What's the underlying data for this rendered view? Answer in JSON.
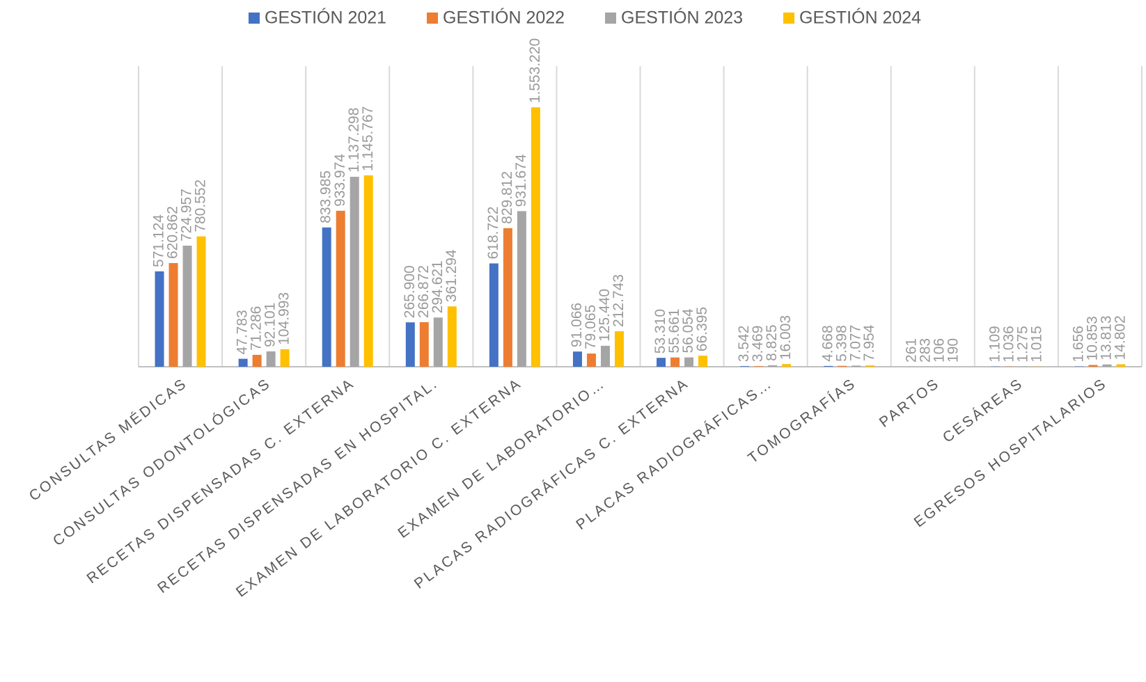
{
  "chart_data": {
    "type": "bar",
    "categories": [
      "CONSULTAS MÉDICAS",
      "CONSULTAS ODONTOLÓGICAS",
      "RECETAS DISPENSADAS C. EXTERNA",
      "RECETAS DISPENSADAS EN HOSPITAL.",
      "EXAMEN DE LABORATORIO C. EXTERNA",
      "EXAMEN DE LABORATORIO…",
      "PLACAS RADIOGRÁFICAS C. EXTERNA",
      "PLACAS RADIOGRÁFICAS…",
      "TOMOGRAFÍAS",
      "PARTOS",
      "CESÁREAS",
      "EGRESOS HOSPITALARIOS"
    ],
    "series": [
      {
        "name": "GESTIÓN 2021",
        "color": "#4472c4",
        "values": [
          571124,
          47783,
          833985,
          265900,
          618722,
          91066,
          53310,
          3542,
          4668,
          261,
          1109,
          1656
        ],
        "value_labels": [
          "571.124",
          "47.783",
          "833.985",
          "265.900",
          "618.722",
          "91.066",
          "53.310",
          "3.542",
          "4.668",
          "261",
          "1.109",
          "1.656"
        ]
      },
      {
        "name": "GESTIÓN 2022",
        "color": "#ed7d31",
        "values": [
          620862,
          71286,
          933974,
          266872,
          829812,
          79065,
          55661,
          3469,
          5398,
          283,
          1036,
          10853
        ],
        "value_labels": [
          "620.862",
          "71.286",
          "933.974",
          "266.872",
          "829.812",
          "79.065",
          "55.661",
          "3.469",
          "5.398",
          "283",
          "1.036",
          "10.853"
        ]
      },
      {
        "name": "GESTIÓN 2023",
        "color": "#a5a5a5",
        "values": [
          724957,
          92101,
          1137298,
          294621,
          931674,
          125440,
          56054,
          8825,
          7077,
          106,
          1275,
          13813
        ],
        "value_labels": [
          "724.957",
          "92.101",
          "1.137.298",
          "294.621",
          "931.674",
          "125.440",
          "56.054",
          "8.825",
          "7.077",
          "106",
          "1.275",
          "13.813"
        ]
      },
      {
        "name": "GESTIÓN 2024",
        "color": "#ffc000",
        "values": [
          780552,
          104993,
          1145767,
          361294,
          1553220,
          212743,
          66395,
          16003,
          7954,
          190,
          1015,
          14802
        ],
        "value_labels": [
          "780.552",
          "104.993",
          "1.145.767",
          "361.294",
          "1.553.220",
          "212.743",
          "66.395",
          "16.003",
          "7.954",
          "190",
          "1.015",
          "14.802"
        ]
      }
    ],
    "ylim": [
      0,
      1800000
    ],
    "legend": "top"
  }
}
